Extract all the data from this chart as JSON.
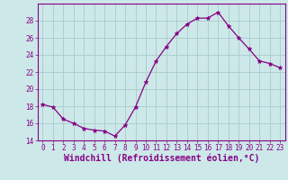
{
  "x": [
    0,
    1,
    2,
    3,
    4,
    5,
    6,
    7,
    8,
    9,
    10,
    11,
    12,
    13,
    14,
    15,
    16,
    17,
    18,
    19,
    20,
    21,
    22,
    23
  ],
  "y": [
    18.2,
    17.9,
    16.5,
    16.0,
    15.4,
    15.2,
    15.1,
    14.5,
    15.8,
    17.9,
    20.8,
    23.3,
    25.0,
    26.5,
    27.6,
    28.3,
    28.3,
    29.0,
    27.4,
    26.0,
    24.7,
    23.3,
    23.0,
    22.5
  ],
  "line_color": "#880088",
  "marker": "*",
  "marker_size": 3.5,
  "bg_color": "#cce8e8",
  "grid_color": "#aacccc",
  "xlabel": "Windchill (Refroidissement éolien,°C)",
  "ylim": [
    14,
    30
  ],
  "xlim": [
    -0.5,
    23.5
  ],
  "yticks": [
    14,
    16,
    18,
    20,
    22,
    24,
    26,
    28
  ],
  "xticks": [
    0,
    1,
    2,
    3,
    4,
    5,
    6,
    7,
    8,
    9,
    10,
    11,
    12,
    13,
    14,
    15,
    16,
    17,
    18,
    19,
    20,
    21,
    22,
    23
  ],
  "tick_color": "#880088",
  "tick_fontsize": 5.5,
  "xlabel_fontsize": 7.0,
  "label_color": "#880088",
  "spine_color": "#880088"
}
